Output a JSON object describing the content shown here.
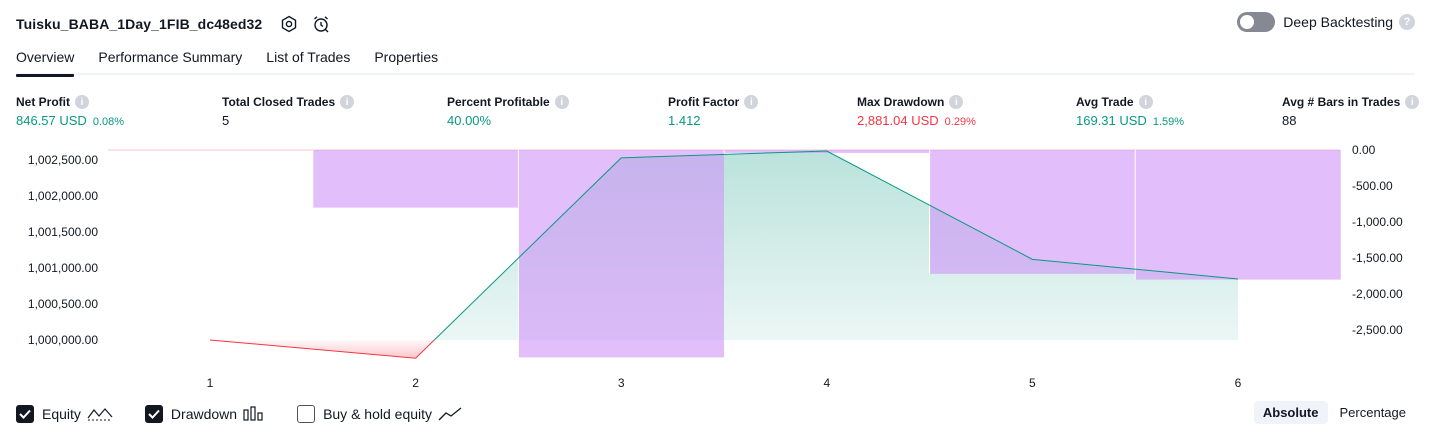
{
  "header": {
    "title": "Tuisku_BABA_1Day_1FIB_dc48ed32",
    "deep_backtesting_label": "Deep Backtesting",
    "deep_backtesting_on": false,
    "help_glyph": "?"
  },
  "tabs": [
    {
      "label": "Overview",
      "active": true
    },
    {
      "label": "Performance Summary",
      "active": false
    },
    {
      "label": "List of Trades",
      "active": false
    },
    {
      "label": "Properties",
      "active": false
    }
  ],
  "metrics": [
    {
      "label": "Net Profit",
      "value": "846.57 USD",
      "sub": "0.08%",
      "color": "green"
    },
    {
      "label": "Total Closed Trades",
      "value": "5",
      "sub": "",
      "color": "dark"
    },
    {
      "label": "Percent Profitable",
      "value": "40.00%",
      "sub": "",
      "color": "green"
    },
    {
      "label": "Profit Factor",
      "value": "1.412",
      "sub": "",
      "color": "green"
    },
    {
      "label": "Max Drawdown",
      "value": "2,881.04 USD",
      "sub": "0.29%",
      "color": "red"
    },
    {
      "label": "Avg Trade",
      "value": "169.31 USD",
      "sub": "1.59%",
      "color": "green"
    },
    {
      "label": "Avg # Bars in Trades",
      "value": "88",
      "sub": "",
      "color": "dark"
    }
  ],
  "info_glyph": "i",
  "chart_data": {
    "type": "line",
    "x": [
      1,
      2,
      3,
      4,
      5,
      6
    ],
    "equity": {
      "name": "Equity",
      "values": [
        1000000.0,
        999746.8,
        1002530.0,
        1002625.0,
        1001120.0,
        1000847.0
      ],
      "color_up": "#089981",
      "color_down": "#f23645"
    },
    "drawdown": {
      "name": "Drawdown",
      "values": [
        0,
        -800,
        -2881.04,
        -40,
        -1720,
        -1800
      ],
      "color": "#ce93f9"
    },
    "left_axis": {
      "ticks": [
        "1,002,500.00",
        "1,002,000.00",
        "1,001,500.00",
        "1,001,000.00",
        "1,000,500.00",
        "1,000,000.00"
      ],
      "tick_values": [
        1002500,
        1002000,
        1001500,
        1001000,
        1000500,
        1000000
      ]
    },
    "right_axis": {
      "ticks": [
        "0.00",
        "-500.00",
        "-1,000.00",
        "-1,500.00",
        "-2,000.00",
        "-2,500.00"
      ],
      "tick_values": [
        0,
        -500,
        -1000,
        -1500,
        -2000,
        -2500
      ]
    },
    "x_ticks": [
      "1",
      "2",
      "3",
      "4",
      "5",
      "6"
    ]
  },
  "legend": {
    "equity_label": "Equity",
    "equity_checked": true,
    "drawdown_label": "Drawdown",
    "drawdown_checked": true,
    "buyhold_label": "Buy & hold equity",
    "buyhold_checked": false
  },
  "mode": {
    "absolute_label": "Absolute",
    "percentage_label": "Percentage",
    "active": "absolute"
  }
}
